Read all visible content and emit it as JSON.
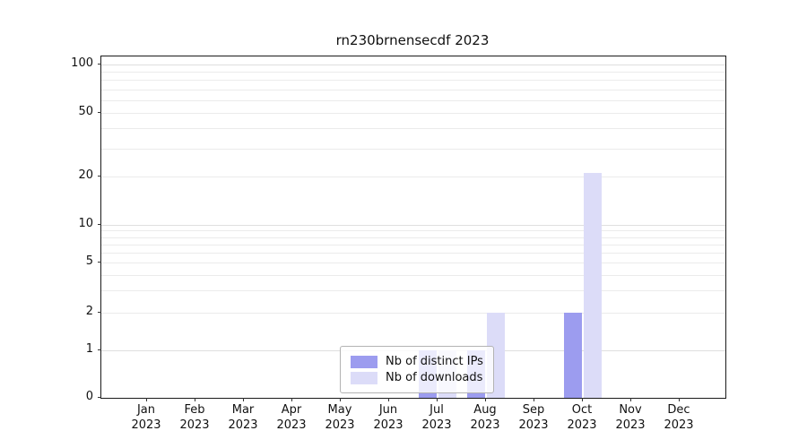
{
  "title": "rn230brnensecdf 2023",
  "chart_data": {
    "type": "bar",
    "months": [
      "Jan",
      "Feb",
      "Mar",
      "Apr",
      "May",
      "Jun",
      "Jul",
      "Aug",
      "Sep",
      "Oct",
      "Nov",
      "Dec"
    ],
    "year": "2023",
    "series": [
      {
        "name": "Nb of distinct IPs",
        "color": "#9c9cef",
        "values": [
          0,
          0,
          0,
          0,
          0,
          0,
          1,
          1,
          0,
          2,
          0,
          0
        ]
      },
      {
        "name": "Nb of downloads",
        "color": "#dcdcf8",
        "values": [
          0,
          0,
          0,
          0,
          0,
          0,
          1,
          2,
          0,
          21,
          0,
          0
        ]
      }
    ],
    "yticks": [
      0,
      1,
      2,
      5,
      10,
      20,
      50,
      100
    ],
    "minor_gridlines": [
      2,
      3,
      4,
      5,
      6,
      7,
      8,
      9,
      20,
      30,
      40,
      50,
      60,
      70,
      80,
      90
    ],
    "major_gridlines": [
      1,
      10,
      100
    ],
    "ylim": [
      0,
      100
    ],
    "scale": "symlog",
    "grid": true,
    "legend_position": "bottom-center"
  }
}
